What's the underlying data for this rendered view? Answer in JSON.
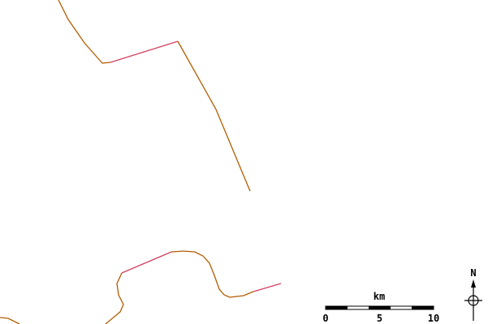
{
  "scale_bar": {
    "unit": "km",
    "ticks": [
      0,
      5,
      10
    ]
  },
  "north_arrow": {
    "label": "N"
  }
}
